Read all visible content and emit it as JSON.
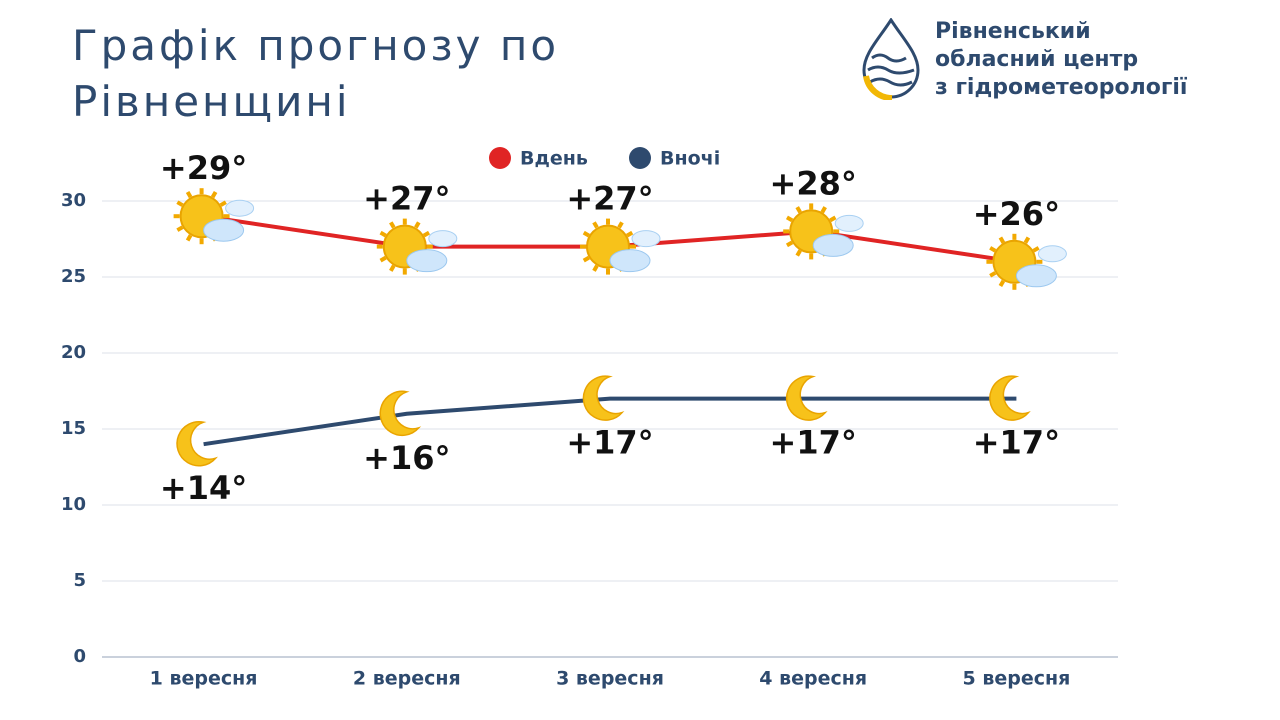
{
  "header": {
    "title": "Графік прогнозу по Рівненщині",
    "organization": [
      "Рівненський",
      "обласний центр",
      "з гідрометеорології"
    ]
  },
  "chart_data": {
    "type": "line",
    "categories": [
      "1 вересня",
      "2 вересня",
      "3 вересня",
      "4 вересня",
      "5 вересня"
    ],
    "series": [
      {
        "name": "Вдень",
        "color": "#e02424",
        "values": [
          29,
          27,
          27,
          28,
          26
        ],
        "value_labels": [
          "+29°",
          "+27°",
          "+27°",
          "+28°",
          "+26°"
        ]
      },
      {
        "name": "Вночі",
        "color": "#2e4a6e",
        "values": [
          14,
          16,
          17,
          17,
          17
        ],
        "value_labels": [
          "+14°",
          "+16°",
          "+17°",
          "+17°",
          "+17°"
        ]
      }
    ],
    "ylim": [
      0,
      30
    ],
    "yticks": [
      0,
      5,
      10,
      15,
      20,
      25,
      30
    ],
    "grid": true
  }
}
